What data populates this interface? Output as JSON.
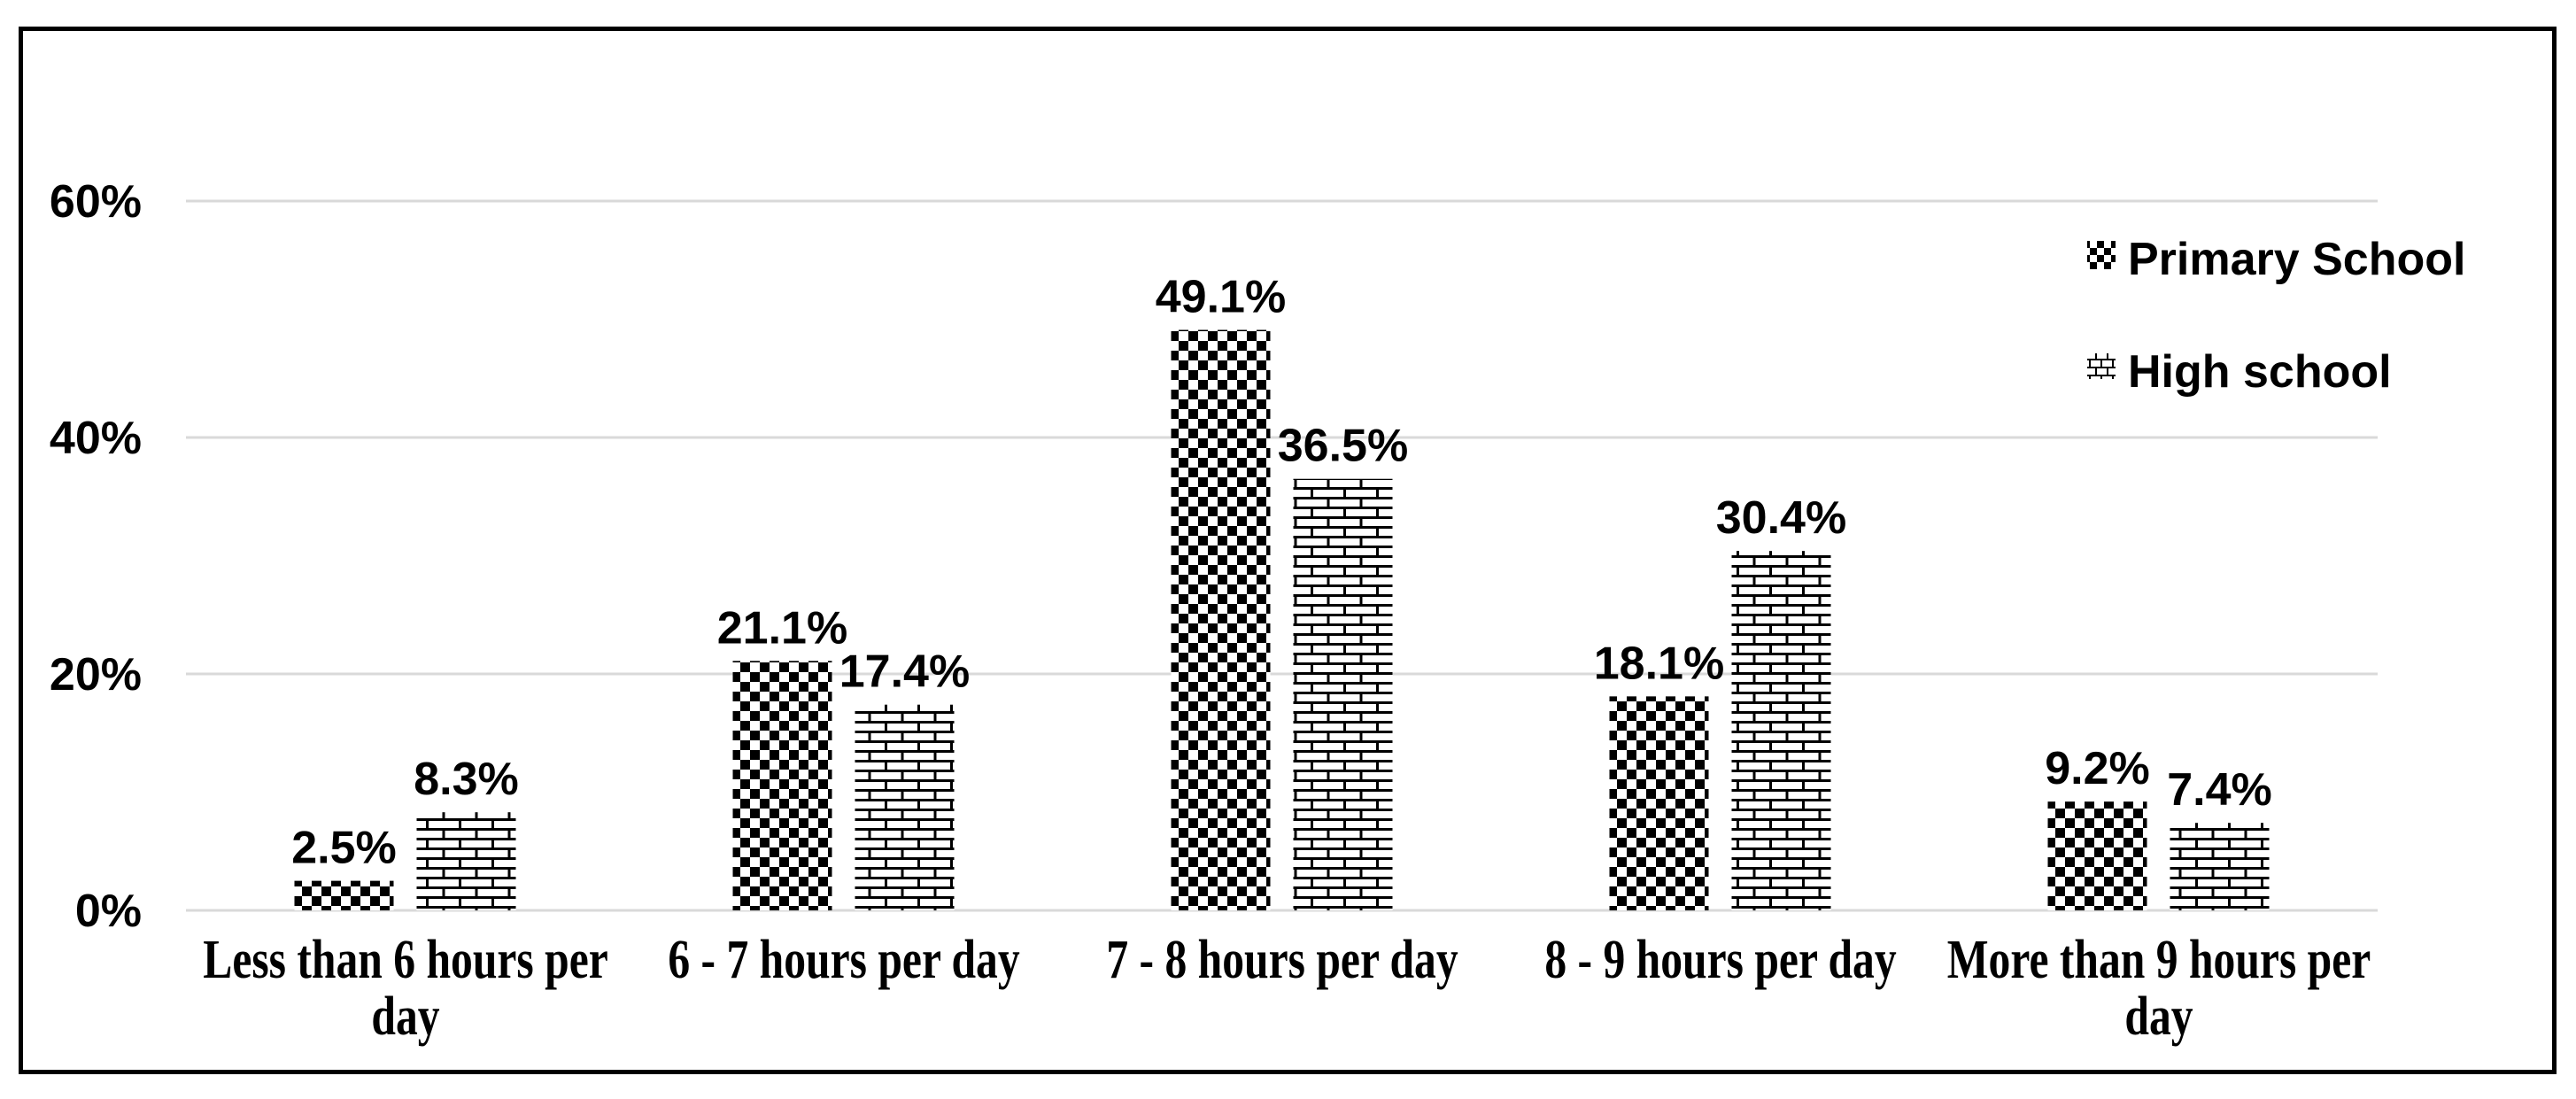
{
  "chart_data": {
    "type": "bar",
    "title": "",
    "xlabel": "",
    "ylabel": "",
    "categories": [
      "Less than 6 hours per day",
      "6 - 7 hours per day",
      "7 - 8 hours per day",
      "8 - 9 hours per day",
      "More than 9 hours per day"
    ],
    "series": [
      {
        "name": "Primary School",
        "pattern": "checker",
        "values": [
          2.5,
          21.1,
          49.1,
          18.1,
          9.2
        ],
        "labels": [
          "2.5%",
          "21.1%",
          "49.1%",
          "18.1%",
          "9.2%"
        ]
      },
      {
        "name": "High school",
        "pattern": "brick",
        "values": [
          8.3,
          17.4,
          36.5,
          30.4,
          7.4
        ],
        "labels": [
          "8.3%",
          "17.4%",
          "36.5%",
          "30.4%",
          "7.4%"
        ]
      }
    ],
    "y_axis": {
      "ylim": [
        0,
        60
      ],
      "ticks": [
        {
          "label": "0%",
          "value": 0
        },
        {
          "label": "20%",
          "value": 20
        },
        {
          "label": "40%",
          "value": 40
        },
        {
          "label": "60%",
          "value": 60
        }
      ]
    },
    "grid": true,
    "legend_position": "top-right",
    "colors": {
      "foreground": "#000000",
      "background": "#ffffff",
      "gridline": "#d9d9d9",
      "border": "#000000"
    }
  }
}
